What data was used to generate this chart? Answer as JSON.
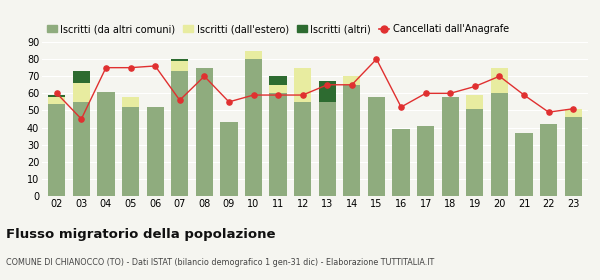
{
  "years": [
    "02",
    "03",
    "04",
    "05",
    "06",
    "07",
    "08",
    "09",
    "10",
    "11",
    "12",
    "13",
    "14",
    "15",
    "16",
    "17",
    "18",
    "19",
    "20",
    "21",
    "22",
    "23"
  ],
  "iscritti_comuni": [
    54,
    55,
    61,
    52,
    52,
    73,
    75,
    43,
    80,
    60,
    55,
    55,
    65,
    58,
    39,
    41,
    58,
    51,
    60,
    37,
    42,
    46
  ],
  "iscritti_estero": [
    4,
    11,
    0,
    6,
    0,
    6,
    0,
    0,
    5,
    5,
    20,
    0,
    5,
    0,
    0,
    0,
    0,
    8,
    15,
    0,
    0,
    5
  ],
  "iscritti_altri": [
    1,
    7,
    0,
    0,
    0,
    1,
    0,
    0,
    0,
    5,
    0,
    12,
    0,
    0,
    0,
    0,
    0,
    0,
    0,
    0,
    0,
    0
  ],
  "cancellati": [
    60,
    45,
    75,
    75,
    76,
    56,
    70,
    55,
    59,
    59,
    59,
    65,
    65,
    80,
    52,
    60,
    60,
    64,
    70,
    59,
    49,
    51
  ],
  "color_comuni": "#8fac7e",
  "color_estero": "#e8eca0",
  "color_altri": "#2d6b30",
  "color_cancellati": "#e03030",
  "ylim": [
    0,
    90
  ],
  "yticks": [
    0,
    10,
    20,
    30,
    40,
    50,
    60,
    70,
    80,
    90
  ],
  "title": "Flusso migratorio della popolazione",
  "subtitle": "COMUNE DI CHIANOCCO (TO) - Dati ISTAT (bilancio demografico 1 gen-31 dic) - Elaborazione TUTTITALIA.IT",
  "legend_labels": [
    "Iscritti (da altri comuni)",
    "Iscritti (dall'estero)",
    "Iscritti (altri)",
    "Cancellati dall'Anagrafe"
  ],
  "bg_color": "#f5f5f0"
}
